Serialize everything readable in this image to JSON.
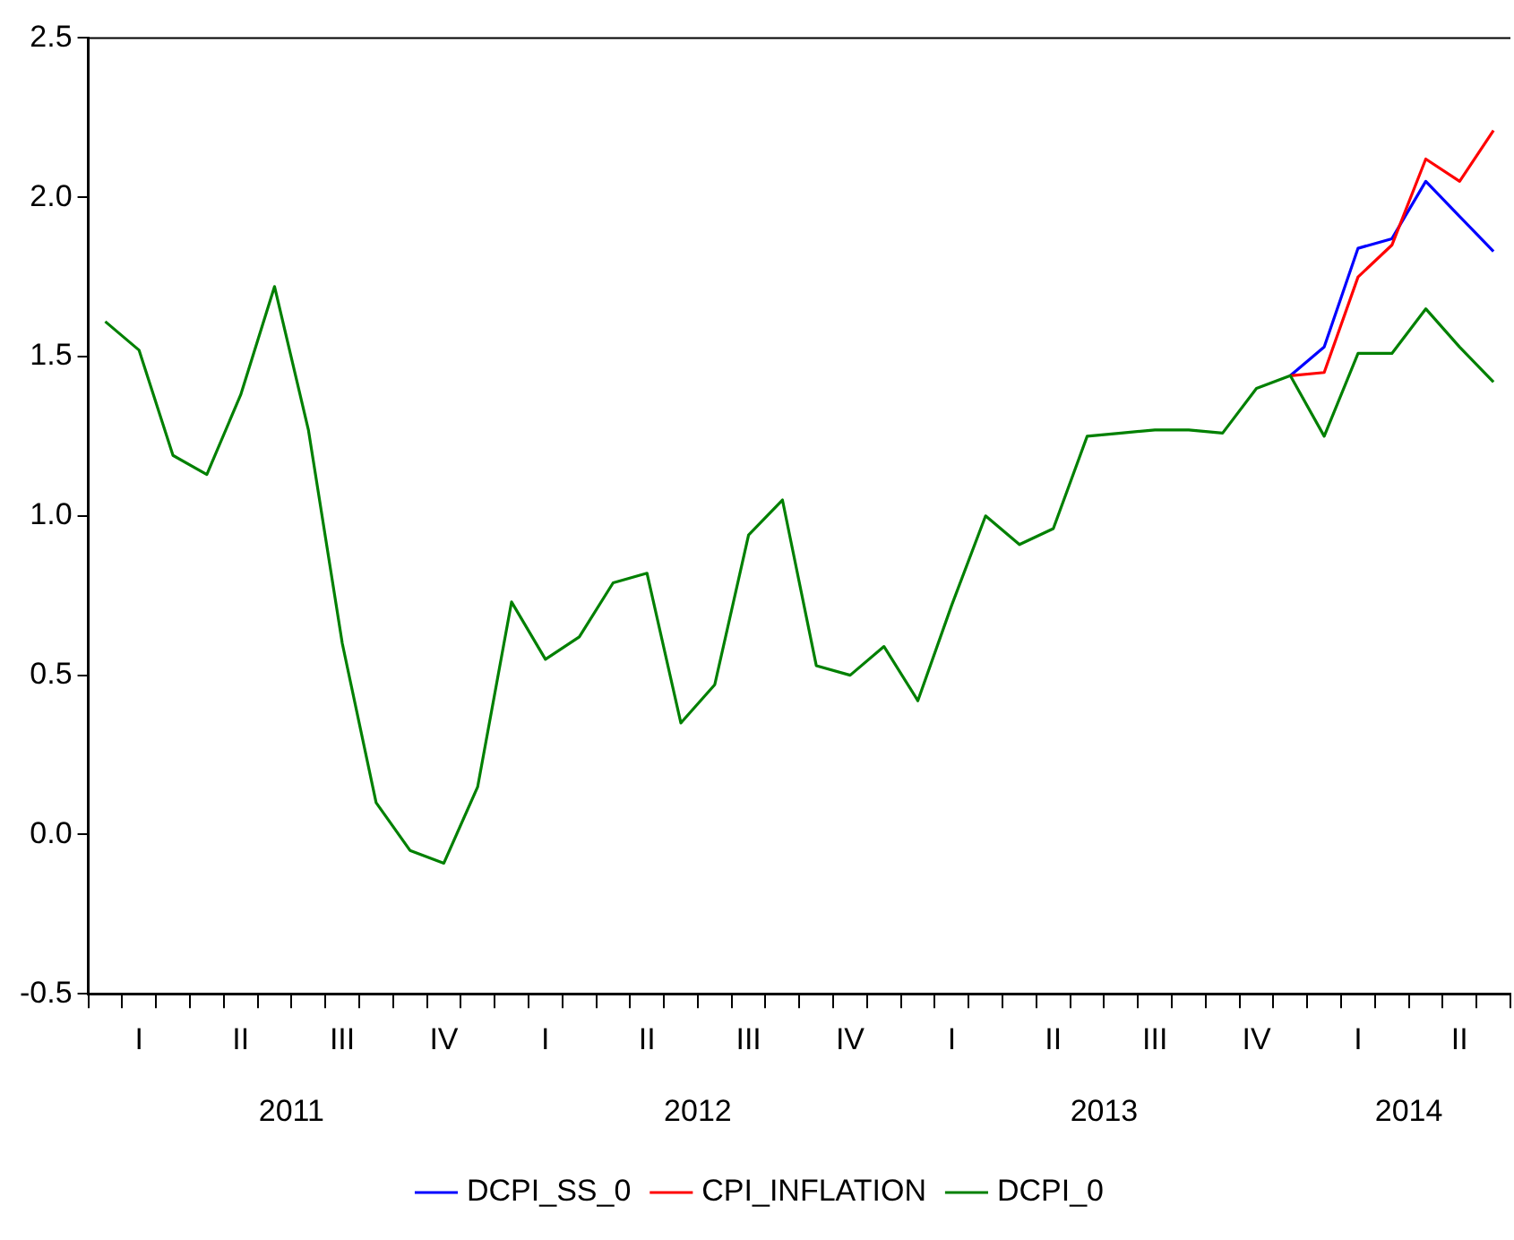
{
  "chart_data": {
    "type": "line",
    "categories": [
      null,
      "I",
      null,
      null,
      "II",
      null,
      null,
      "III",
      null,
      null,
      "IV",
      null,
      null,
      "I",
      null,
      null,
      "II",
      null,
      null,
      "III",
      null,
      null,
      "IV",
      null,
      null,
      "I",
      null,
      null,
      "II",
      null,
      null,
      "III",
      null,
      null,
      "IV",
      null,
      null,
      "I",
      null,
      null,
      "II",
      null
    ],
    "annotations": [
      "2011",
      "2012",
      "2013",
      "2014"
    ],
    "series": [
      {
        "name": "DCPI_SS_0",
        "color": "#0000ff",
        "values": [
          null,
          null,
          null,
          null,
          null,
          null,
          null,
          null,
          null,
          null,
          null,
          null,
          null,
          null,
          null,
          null,
          null,
          null,
          null,
          null,
          null,
          null,
          null,
          null,
          null,
          null,
          null,
          null,
          null,
          null,
          null,
          null,
          null,
          null,
          null,
          1.44,
          1.53,
          1.84,
          1.87,
          2.05,
          1.94,
          1.83
        ]
      },
      {
        "name": "CPI_INFLATION",
        "color": "#ff0000",
        "values": [
          null,
          null,
          null,
          null,
          null,
          null,
          null,
          null,
          null,
          null,
          null,
          null,
          null,
          null,
          null,
          null,
          null,
          null,
          null,
          null,
          null,
          null,
          null,
          null,
          null,
          null,
          null,
          null,
          null,
          null,
          null,
          null,
          null,
          null,
          null,
          1.44,
          1.45,
          1.75,
          1.85,
          2.12,
          2.05,
          2.21
        ]
      },
      {
        "name": "DCPI_0",
        "color": "#008000",
        "values": [
          1.61,
          1.52,
          1.19,
          1.13,
          1.38,
          1.72,
          1.27,
          0.6,
          0.1,
          -0.05,
          -0.09,
          0.15,
          0.73,
          0.55,
          0.62,
          0.79,
          0.82,
          0.35,
          0.47,
          0.94,
          1.05,
          0.53,
          0.5,
          0.59,
          0.42,
          0.72,
          1.0,
          0.91,
          0.96,
          1.25,
          1.26,
          1.27,
          1.27,
          1.26,
          1.4,
          1.44,
          1.25,
          1.51,
          1.51,
          1.65,
          1.53,
          1.42
        ]
      }
    ],
    "ylim": [
      -0.5,
      2.5
    ],
    "yticks": [
      {
        "value": -0.5,
        "label": "-0.5"
      },
      {
        "value": 0,
        "label": "0.0"
      },
      {
        "value": 0.5,
        "label": "0.5"
      },
      {
        "value": 1,
        "label": "1.0"
      },
      {
        "value": 1.5,
        "label": "1.5"
      },
      {
        "value": 2,
        "label": "2.0"
      },
      2.5
    ],
    "grid": false,
    "legend": "bottom",
    "marker": "none",
    "line_style": "solid"
  }
}
